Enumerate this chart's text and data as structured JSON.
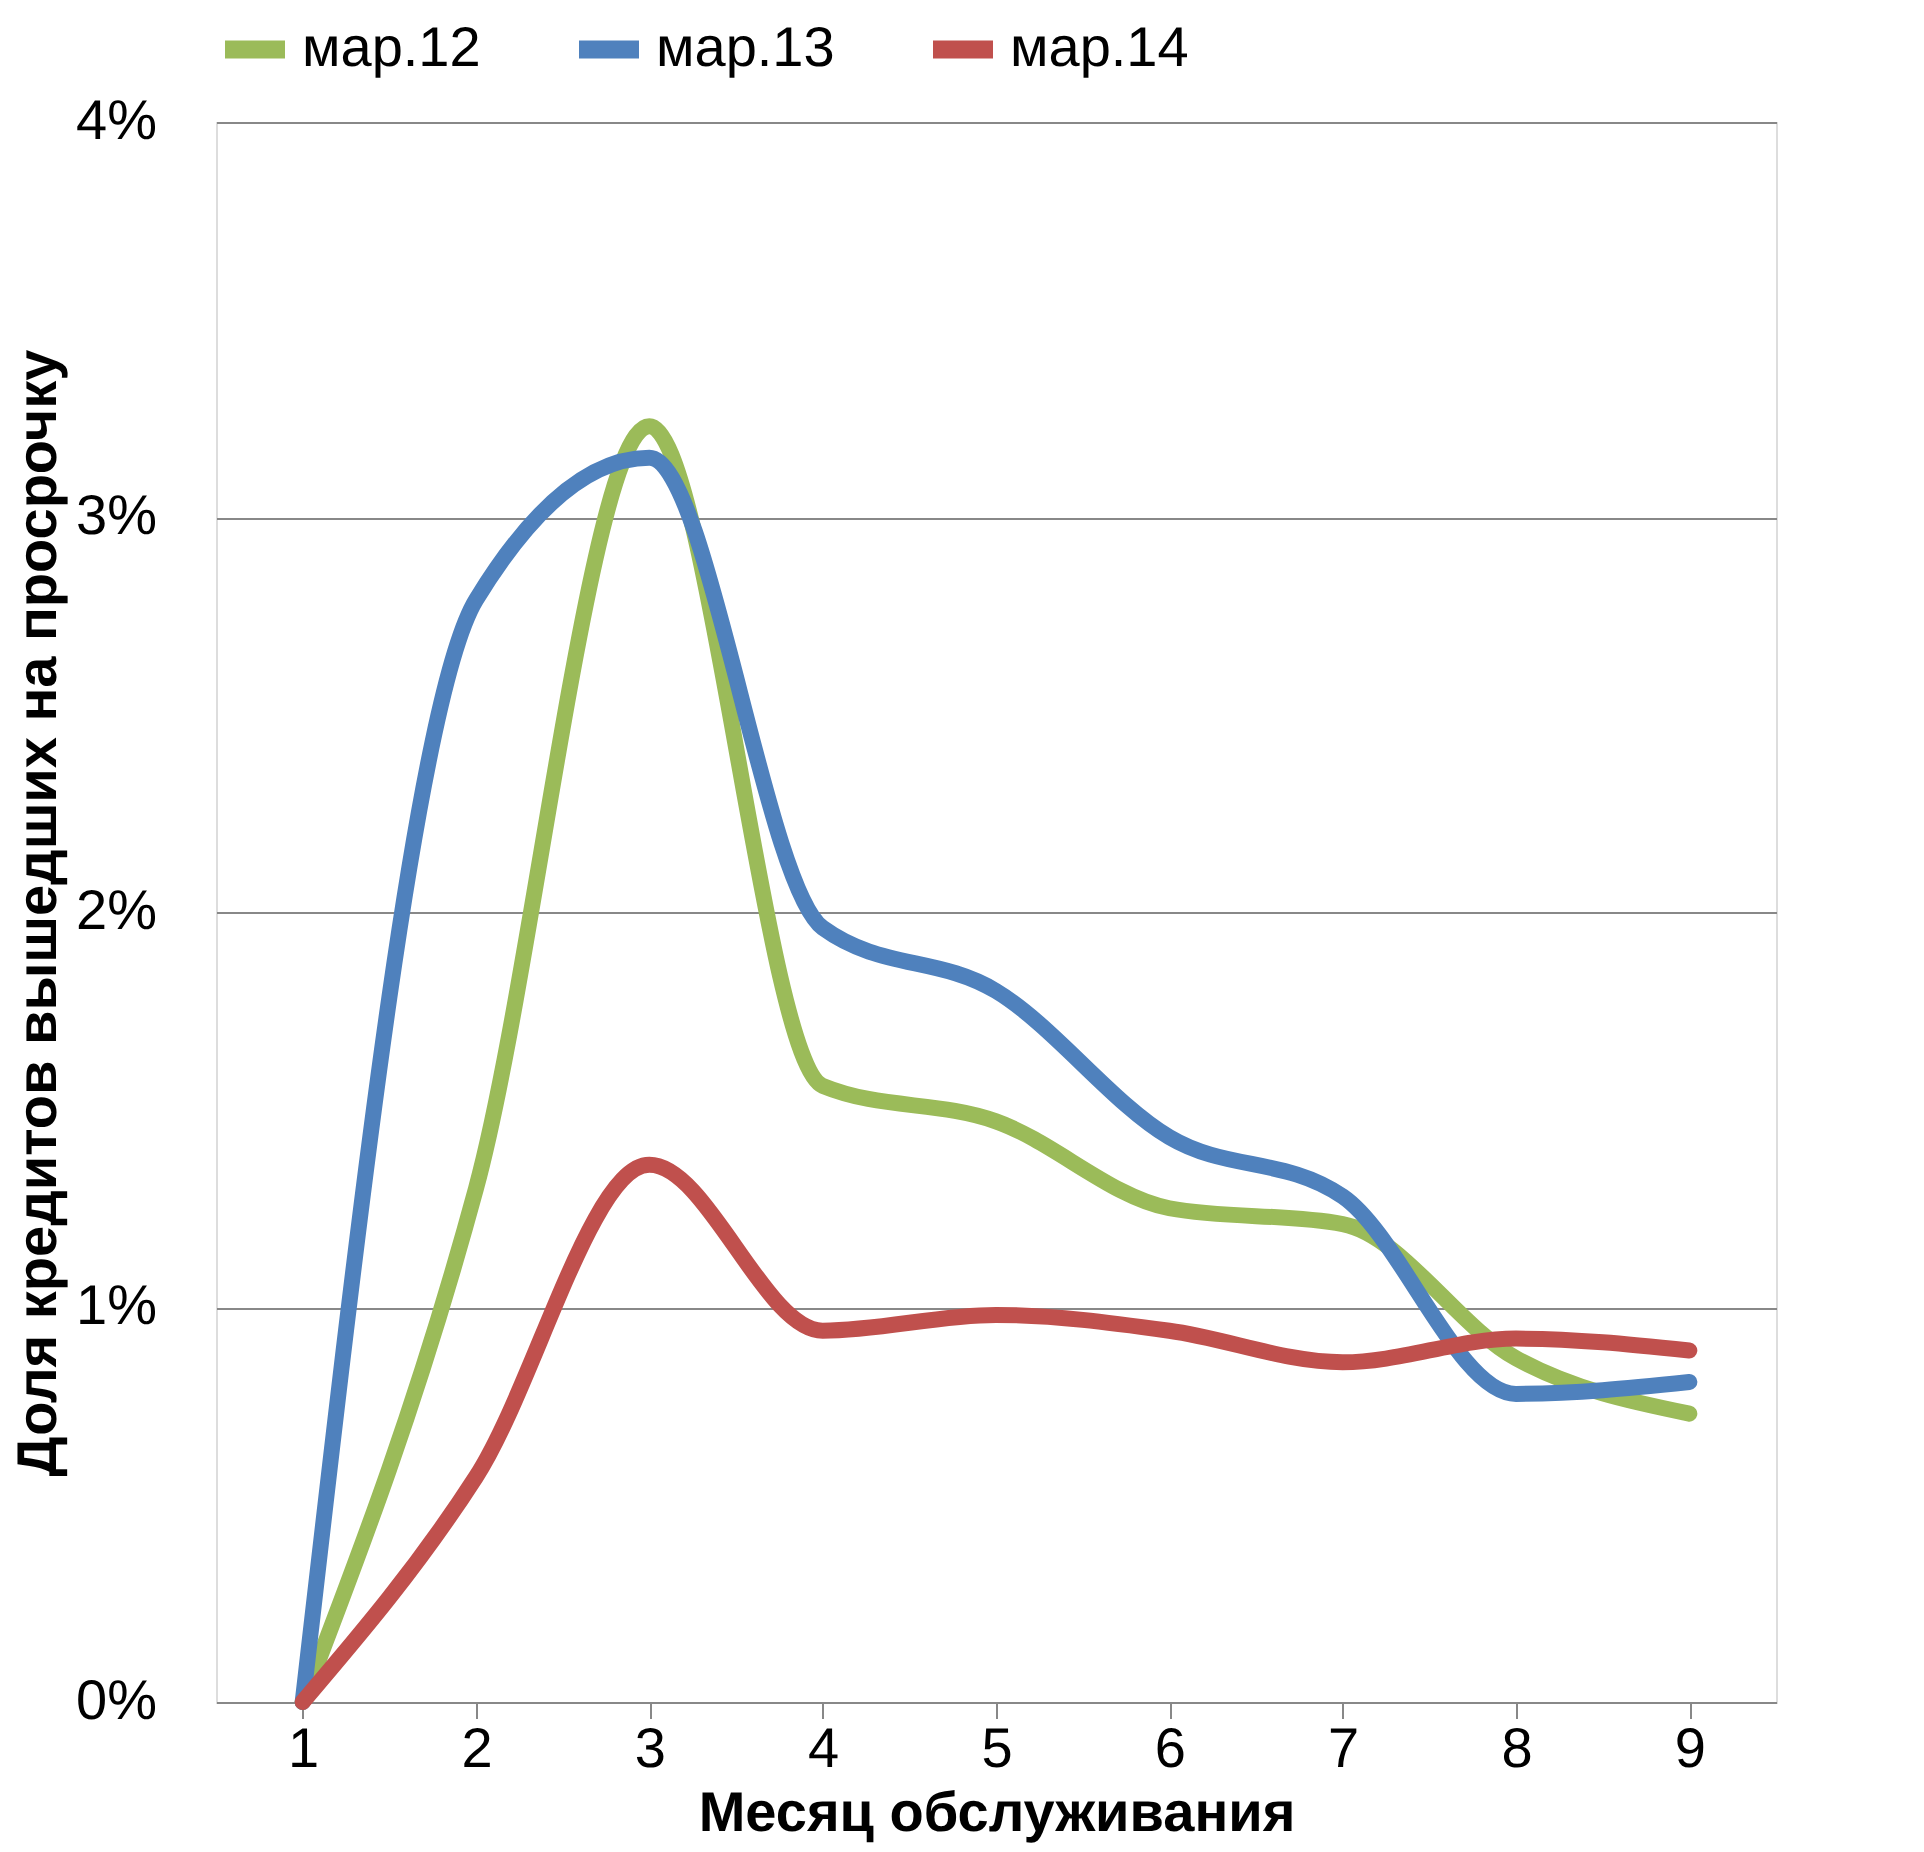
{
  "chart_data": {
    "type": "line",
    "xlabel": "Месяц обслуживания",
    "ylabel": "Доля кредитов вышедших на просрочку",
    "categories": [
      "1",
      "2",
      "3",
      "4",
      "5",
      "6",
      "7",
      "8",
      "9"
    ],
    "series": [
      {
        "name": "мар.12",
        "color": "#9bbb59",
        "values": [
          0,
          1.3,
          3.23,
          1.56,
          1.47,
          1.25,
          1.21,
          0.87,
          0.73
        ]
      },
      {
        "name": "мар.13",
        "color": "#4f81bd",
        "values": [
          0,
          2.79,
          3.15,
          1.96,
          1.8,
          1.43,
          1.28,
          0.78,
          0.81
        ]
      },
      {
        "name": "мар.14",
        "color": "#c0504d",
        "values": [
          0,
          0.57,
          1.36,
          0.94,
          0.98,
          0.94,
          0.86,
          0.92,
          0.89
        ]
      }
    ],
    "ylim": [
      0,
      4
    ],
    "yticks": [
      {
        "value": 0,
        "label": "0%"
      },
      {
        "value": 1,
        "label": "1%"
      },
      {
        "value": 2,
        "label": "2%"
      },
      {
        "value": 3,
        "label": "3%"
      },
      {
        "value": 4,
        "label": "4%"
      }
    ],
    "grid": "y",
    "legend": "top",
    "marker": "none",
    "line_style": "solid"
  }
}
